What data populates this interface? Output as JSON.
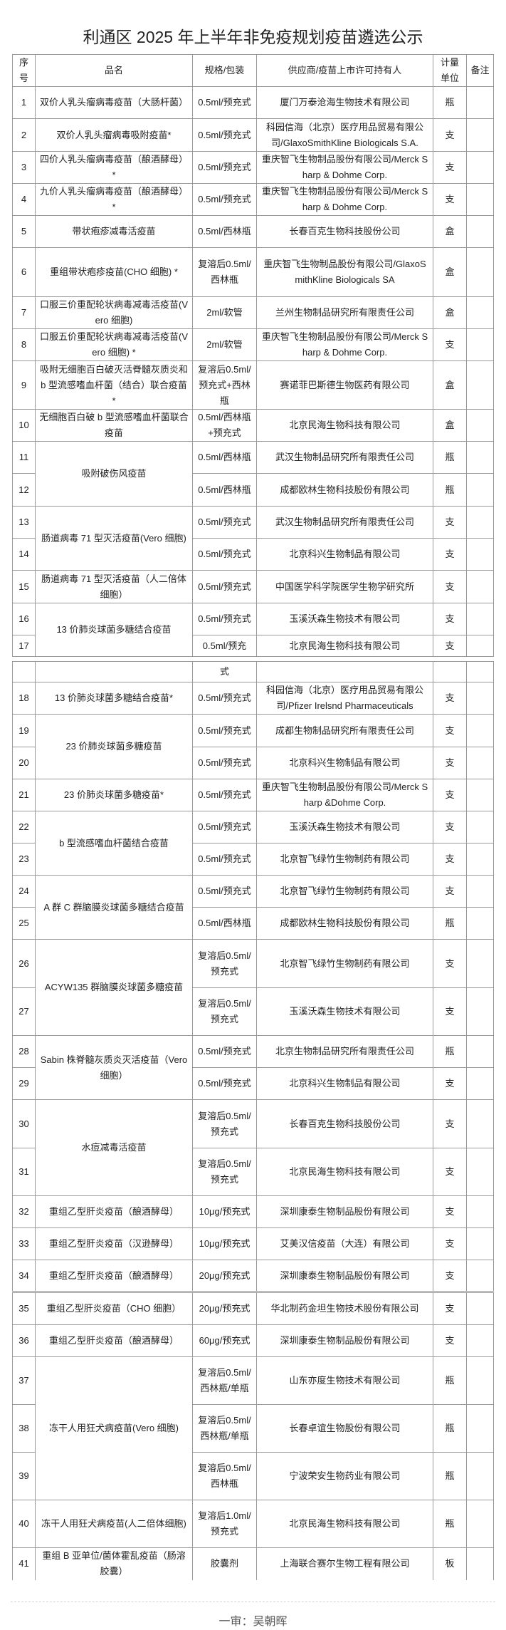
{
  "title": "利通区 2025 年上半年非免疫规划疫苗遴选公示",
  "table": {
    "headers": [
      "序号",
      "品名",
      "规格/包装",
      "供应商/疫苗上市许可持有人",
      "计量单位",
      "备注"
    ],
    "pages": [
      {
        "rows": [
          {
            "no": "1",
            "name": "双价人乳头瘤病毒疫苗（大肠杆菌）",
            "spec": "0.5ml/预充式",
            "supplier": "厦门万泰沧海生物技术有限公司",
            "unit": "瓶",
            "remark": ""
          },
          {
            "no": "2",
            "name": "双价人乳头瘤病毒吸附疫苗*",
            "spec": "0.5ml/预充式",
            "supplier": "科园信海（北京）医疗用品贸易有限公司/GlaxoSmithKline Biologicals S.A.",
            "unit": "支",
            "remark": ""
          },
          {
            "no": "3",
            "name": "四价人乳头瘤病毒疫苗（酿酒酵母）*",
            "spec": "0.5ml/预充式",
            "supplier": "重庆智飞生物制品股份有限公司/Merck Sharp & Dohme Corp.",
            "unit": "支",
            "remark": ""
          },
          {
            "no": "4",
            "name": "九价人乳头瘤病毒疫苗（酿酒酵母）*",
            "spec": "0.5ml/预充式",
            "supplier": "重庆智飞生物制品股份有限公司/Merck Sharp & Dohme Corp.",
            "unit": "支",
            "remark": ""
          },
          {
            "no": "5",
            "name": "带状疱疹减毒活疫苗",
            "spec": "0.5ml/西林瓶",
            "supplier": "长春百克生物科技股份公司",
            "unit": "盒",
            "remark": ""
          },
          {
            "no": "6",
            "name": "重组带状疱疹疫苗(CHO 细胞) *",
            "spec": "复溶后0.5ml/西林瓶",
            "supplier": "重庆智飞生物制品股份有限公司/GlaxoSmithKline Biologicals SA",
            "unit": "盒",
            "remark": ""
          },
          {
            "no": "7",
            "name": "口服三价重配轮状病毒减毒活疫苗(Vero 细胞)",
            "spec": "2ml/软管",
            "supplier": "兰州生物制品研究所有限责任公司",
            "unit": "盒",
            "remark": ""
          },
          {
            "no": "8",
            "name": "口服五价重配轮状病毒减毒活疫苗(Vero 细胞) *",
            "spec": "2ml/软管",
            "supplier": "重庆智飞生物制品股份有限公司/Merck Sharp & Dohme Corp.",
            "unit": "支",
            "remark": ""
          },
          {
            "no": "9",
            "name": "吸附无细胞百白破灭活脊髓灰质炎和b 型流感嗜血杆菌（结合）联合疫苗*",
            "spec": "复溶后0.5ml/预充式+西林瓶",
            "supplier": "赛诺菲巴斯德生物医药有限公司",
            "unit": "盒",
            "remark": ""
          },
          {
            "no": "10",
            "name": "无细胞百白破 b 型流感嗜血杆菌联合疫苗",
            "spec": "0.5ml/西林瓶+预充式",
            "supplier": "北京民海生物科技有限公司",
            "unit": "盒",
            "remark": ""
          },
          {
            "no": "11",
            "name": "吸附破伤风疫苗",
            "name_rowspan": 2,
            "spec": "0.5ml/西林瓶",
            "supplier": "武汉生物制品研究所有限责任公司",
            "unit": "瓶",
            "remark": ""
          },
          {
            "no": "12",
            "name_merged": true,
            "spec": "0.5ml/西林瓶",
            "supplier": "成都欧林生物科技股份有限公司",
            "unit": "瓶",
            "remark": ""
          },
          {
            "no": "13",
            "name": "肠道病毒 71 型灭活疫苗(Vero 细胞)",
            "name_rowspan": 2,
            "spec": "0.5ml/预充式",
            "supplier": "武汉生物制品研究所有限责任公司",
            "unit": "支",
            "remark": ""
          },
          {
            "no": "14",
            "name_merged": true,
            "spec": "0.5ml/预充式",
            "supplier": "北京科兴生物制品有限公司",
            "unit": "支",
            "remark": ""
          },
          {
            "no": "15",
            "name": "肠道病毒 71 型灭活疫苗（人二倍体细胞）",
            "spec": "0.5ml/预充式",
            "supplier": "中国医学科学院医学生物学研究所",
            "unit": "支",
            "remark": ""
          },
          {
            "no": "16",
            "name": "13 价肺炎球菌多糖结合疫苗",
            "name_rowspan": 2,
            "spec": "0.5ml/预充式",
            "supplier": "玉溪沃森生物技术有限公司",
            "unit": "支",
            "remark": ""
          },
          {
            "no": "17",
            "name_merged": true,
            "spec": "0.5ml/预充",
            "supplier": "北京民海生物科技有限公司",
            "unit": "支",
            "remark": ""
          }
        ]
      },
      {
        "rows": [
          {
            "no": "",
            "name": "",
            "spec": "式",
            "supplier": "",
            "unit": "",
            "remark": ""
          },
          {
            "no": "18",
            "name": "13 价肺炎球菌多糖结合疫苗*",
            "spec": "0.5ml/预充式",
            "supplier": "科园信海（北京）医疗用品贸易有限公司/Pfizer Irelsnd Pharmaceuticals",
            "unit": "支",
            "remark": ""
          },
          {
            "no": "19",
            "name": "23 价肺炎球菌多糖疫苗",
            "name_rowspan": 2,
            "spec": "0.5ml/预充式",
            "supplier": "成都生物制品研究所有限责任公司",
            "unit": "支",
            "remark": ""
          },
          {
            "no": "20",
            "name_merged": true,
            "spec": "0.5ml/预充式",
            "supplier": "北京科兴生物制品有限公司",
            "unit": "支",
            "remark": ""
          },
          {
            "no": "21",
            "name": "23 价肺炎球菌多糖疫苗*",
            "spec": "0.5ml/预充式",
            "supplier": "重庆智飞生物制品股份有限公司/Merck Sharp &Dohme Corp.",
            "unit": "支",
            "remark": ""
          },
          {
            "no": "22",
            "name": "b 型流感嗜血杆菌结合疫苗",
            "name_rowspan": 2,
            "spec": "0.5ml/预充式",
            "supplier": "玉溪沃森生物技术有限公司",
            "unit": "支",
            "remark": ""
          },
          {
            "no": "23",
            "name_merged": true,
            "spec": "0.5ml/预充式",
            "supplier": "北京智飞绿竹生物制药有限公司",
            "unit": "支",
            "remark": ""
          },
          {
            "no": "24",
            "name": "A 群 C 群脑膜炎球菌多糖结合疫苗",
            "name_rowspan": 2,
            "spec": "0.5ml/预充式",
            "supplier": "北京智飞绿竹生物制药有限公司",
            "unit": "支",
            "remark": ""
          },
          {
            "no": "25",
            "name_merged": true,
            "spec": "0.5ml/西林瓶",
            "supplier": "成都欧林生物科技股份有限公司",
            "unit": "瓶",
            "remark": ""
          },
          {
            "no": "26",
            "name": "ACYW135 群脑膜炎球菌多糖疫苗",
            "name_rowspan": 2,
            "spec": "复溶后0.5ml/预充式",
            "supplier": "北京智飞绿竹生物制药有限公司",
            "unit": "支",
            "remark": ""
          },
          {
            "no": "27",
            "name_merged": true,
            "spec": "复溶后0.5ml/预充式",
            "supplier": "玉溪沃森生物技术有限公司",
            "unit": "支",
            "remark": ""
          },
          {
            "no": "28",
            "name": "Sabin 株脊髓灰质炎灭活疫苗（Vero 细胞）",
            "name_rowspan": 2,
            "spec": "0.5ml/预充式",
            "supplier": "北京生物制品研究所有限责任公司",
            "unit": "瓶",
            "remark": ""
          },
          {
            "no": "29",
            "name_merged": true,
            "spec": "0.5ml/预充式",
            "supplier": "北京科兴生物制品有限公司",
            "unit": "支",
            "remark": ""
          },
          {
            "no": "30",
            "name": "水痘减毒活疫苗",
            "name_rowspan": 2,
            "spec": "复溶后0.5ml/预充式",
            "supplier": "长春百克生物科技股份公司",
            "unit": "支",
            "remark": ""
          },
          {
            "no": "31",
            "name_merged": true,
            "spec": "复溶后0.5ml/预充式",
            "supplier": "北京民海生物科技有限公司",
            "unit": "支",
            "remark": ""
          },
          {
            "no": "32",
            "name": "重组乙型肝炎疫苗（酿酒酵母）",
            "spec": "10μg/预充式",
            "supplier": "深圳康泰生物制品股份有限公司",
            "unit": "支",
            "remark": ""
          },
          {
            "no": "33",
            "name": "重组乙型肝炎疫苗（汉逊酵母）",
            "spec": "10μg/预充式",
            "supplier": "艾美汉信疫苗（大连）有限公司",
            "unit": "支",
            "remark": ""
          },
          {
            "no": "34",
            "name": "重组乙型肝炎疫苗（酿酒酵母）",
            "spec": "20μg/预充式",
            "supplier": "深圳康泰生物制品股份有限公司",
            "unit": "支",
            "remark": ""
          }
        ]
      },
      {
        "rows": [
          {
            "no": "35",
            "name": "重组乙型肝炎疫苗（CHO 细胞）",
            "spec": "20μg/预充式",
            "supplier": "华北制药金坦生物技术股份有限公司",
            "unit": "支",
            "remark": ""
          },
          {
            "no": "36",
            "name": "重组乙型肝炎疫苗（酿酒酵母）",
            "spec": "60μg/预充式",
            "supplier": "深圳康泰生物制品股份有限公司",
            "unit": "支",
            "remark": ""
          },
          {
            "no": "37",
            "name": "冻干人用狂犬病疫苗(Vero 细胞)",
            "name_rowspan": 3,
            "spec": "复溶后0.5ml/西林瓶/单瓶",
            "supplier": "山东亦度生物技术有限公司",
            "unit": "瓶",
            "remark": ""
          },
          {
            "no": "38",
            "name_merged": true,
            "spec": "复溶后0.5ml/西林瓶/单瓶",
            "supplier": "长春卓谊生物股份有限公司",
            "unit": "瓶",
            "remark": ""
          },
          {
            "no": "39",
            "name_merged": true,
            "spec": "复溶后0.5ml/西林瓶",
            "supplier": "宁波荣安生物药业有限公司",
            "unit": "瓶",
            "remark": ""
          },
          {
            "no": "40",
            "name": "冻干人用狂犬病疫苗(人二倍体细胞)",
            "spec": "复溶后1.0ml/预充式",
            "supplier": "北京民海生物科技有限公司",
            "unit": "瓶",
            "remark": ""
          },
          {
            "no": "41",
            "name": "重组 B 亚单位/菌体霍乱疫苗（肠溶胶囊）",
            "spec": "胶囊剂",
            "supplier": "上海联合赛尔生物工程有限公司",
            "unit": "板",
            "remark": ""
          }
        ]
      }
    ]
  },
  "footer": {
    "text": "一审：吴朝晖"
  }
}
